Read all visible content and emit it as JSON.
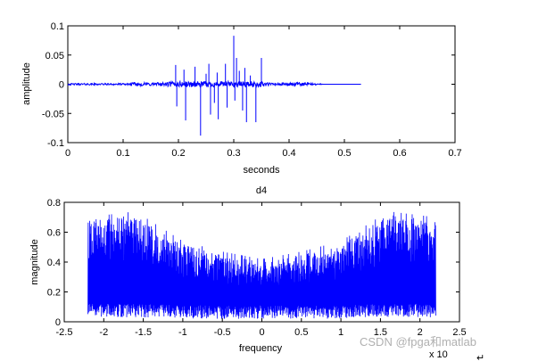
{
  "chart_data": [
    {
      "type": "line",
      "title": "",
      "xlabel": "seconds",
      "ylabel": "amplitude",
      "xlim": [
        0,
        0.7
      ],
      "ylim": [
        -0.1,
        0.1
      ],
      "xticks": [
        "0",
        "0.1",
        "0.2",
        "0.3",
        "0.4",
        "0.5",
        "0.6",
        "0.7"
      ],
      "yticks": [
        "0.1",
        "0.05",
        "0",
        "-0.05",
        "-0.1"
      ],
      "color": "#0000ff",
      "signal_span": [
        0,
        0.53
      ],
      "spikes": [
        {
          "x": 0.195,
          "y": 0.033
        },
        {
          "x": 0.197,
          "y": -0.038
        },
        {
          "x": 0.21,
          "y": 0.025
        },
        {
          "x": 0.213,
          "y": -0.062
        },
        {
          "x": 0.23,
          "y": 0.03
        },
        {
          "x": 0.24,
          "y": -0.088
        },
        {
          "x": 0.25,
          "y": 0.018
        },
        {
          "x": 0.255,
          "y": 0.035
        },
        {
          "x": 0.258,
          "y": -0.052
        },
        {
          "x": 0.265,
          "y": -0.032
        },
        {
          "x": 0.27,
          "y": 0.02
        },
        {
          "x": 0.272,
          "y": -0.06
        },
        {
          "x": 0.285,
          "y": 0.035
        },
        {
          "x": 0.288,
          "y": -0.04
        },
        {
          "x": 0.3,
          "y": 0.083
        },
        {
          "x": 0.302,
          "y": -0.028
        },
        {
          "x": 0.305,
          "y": 0.045
        },
        {
          "x": 0.31,
          "y": 0.023
        },
        {
          "x": 0.316,
          "y": -0.045
        },
        {
          "x": 0.32,
          "y": 0.028
        },
        {
          "x": 0.323,
          "y": -0.065
        },
        {
          "x": 0.33,
          "y": 0.015
        },
        {
          "x": 0.34,
          "y": -0.065
        },
        {
          "x": 0.35,
          "y": 0.045
        }
      ]
    },
    {
      "type": "line",
      "title": "d4",
      "xlabel": "frequency",
      "ylabel": "magnitude",
      "xlim": [
        -2.5,
        2.5
      ],
      "ylim": [
        0,
        0.8
      ],
      "xticks": [
        "-2.5",
        "-2",
        "-1.5",
        "-1",
        "-0.5",
        "0",
        "0.5",
        "1",
        "1.5",
        "2",
        "2.5"
      ],
      "yticks": [
        "0.8",
        "0.6",
        "0.4",
        "0.2",
        "0"
      ],
      "x_scale_label": "x 10",
      "color": "#0000ff",
      "signal_span": [
        -2.2,
        2.2
      ],
      "envelope": [
        {
          "x": -2.2,
          "peak": 0.68,
          "base": 0.03
        },
        {
          "x": -1.6,
          "peak": 0.72,
          "base": 0.03
        },
        {
          "x": -1.0,
          "peak": 0.52,
          "base": 0.02
        },
        {
          "x": -0.5,
          "peak": 0.45,
          "base": 0.02
        },
        {
          "x": 0.0,
          "peak": 0.4,
          "base": 0.02
        },
        {
          "x": 0.5,
          "peak": 0.45,
          "base": 0.02
        },
        {
          "x": 1.0,
          "peak": 0.52,
          "base": 0.02
        },
        {
          "x": 1.6,
          "peak": 0.72,
          "base": 0.03
        },
        {
          "x": 2.2,
          "peak": 0.68,
          "base": 0.03
        }
      ]
    }
  ],
  "watermark": {
    "text": "CSDN @fpga和matlab"
  },
  "corner_mark": {
    "text": "↵"
  }
}
